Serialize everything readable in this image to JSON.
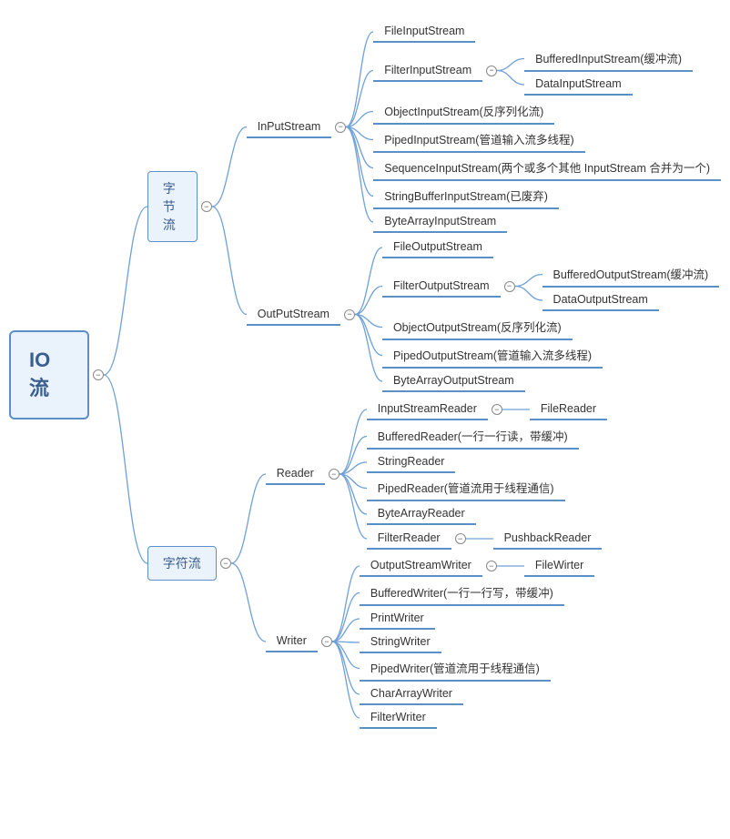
{
  "colors": {
    "border": "#5b8fc7",
    "line": "#6fa0d6",
    "fill": "#eaf2fb",
    "text": "#333333",
    "rootText": "#3a5f8f"
  },
  "toggle_glyph": "⊖",
  "root": {
    "label": "IO流",
    "children": [
      {
        "label": "字节流",
        "boxed": true,
        "children": [
          {
            "label": "InPutStream",
            "children": [
              {
                "label": "FileInputStream"
              },
              {
                "label": "FilterInputStream",
                "children": [
                  {
                    "label": "BufferedInputStream(缓冲流)"
                  },
                  {
                    "label": "DataInputStream"
                  }
                ]
              },
              {
                "label": "ObjectInputStream(反序列化流)"
              },
              {
                "label": "PipedInputStream(管道输入流多线程)"
              },
              {
                "label": "SequenceInputStream(两个或多个其他 InputStream 合并为一个)"
              },
              {
                "label": "StringBufferInputStream(已废弃)"
              },
              {
                "label": "ByteArrayInputStream"
              }
            ]
          },
          {
            "label": "OutPutStream",
            "children": [
              {
                "label": "FileOutputStream"
              },
              {
                "label": "FilterOutputStream",
                "children": [
                  {
                    "label": "BufferedOutputStream(缓冲流)"
                  },
                  {
                    "label": "DataOutputStream"
                  }
                ]
              },
              {
                "label": "ObjectOutputStream(反序列化流)"
              },
              {
                "label": "PipedOutputStream(管道输入流多线程)"
              },
              {
                "label": "ByteArrayOutputStream"
              }
            ]
          }
        ]
      },
      {
        "label": "字符流",
        "boxed": true,
        "children": [
          {
            "label": "Reader",
            "children": [
              {
                "label": "InputStreamReader",
                "children": [
                  {
                    "label": "FileReader"
                  }
                ]
              },
              {
                "label": "BufferedReader(一行一行读，带缓冲)"
              },
              {
                "label": "StringReader"
              },
              {
                "label": "PipedReader(管道流用于线程通信)"
              },
              {
                "label": "ByteArrayReader"
              },
              {
                "label": "FilterReader",
                "children": [
                  {
                    "label": "PushbackReader"
                  }
                ]
              }
            ]
          },
          {
            "label": "Writer",
            "children": [
              {
                "label": "OutputStreamWriter",
                "children": [
                  {
                    "label": "FileWirter"
                  }
                ]
              },
              {
                "label": "BufferedWriter(一行一行写，带缓冲)"
              },
              {
                "label": "PrintWriter"
              },
              {
                "label": "StringWriter"
              },
              {
                "label": "PipedWriter(管道流用于线程通信)"
              },
              {
                "label": "CharArrayWriter"
              },
              {
                "label": "FilterWriter"
              }
            ]
          }
        ]
      }
    ]
  }
}
